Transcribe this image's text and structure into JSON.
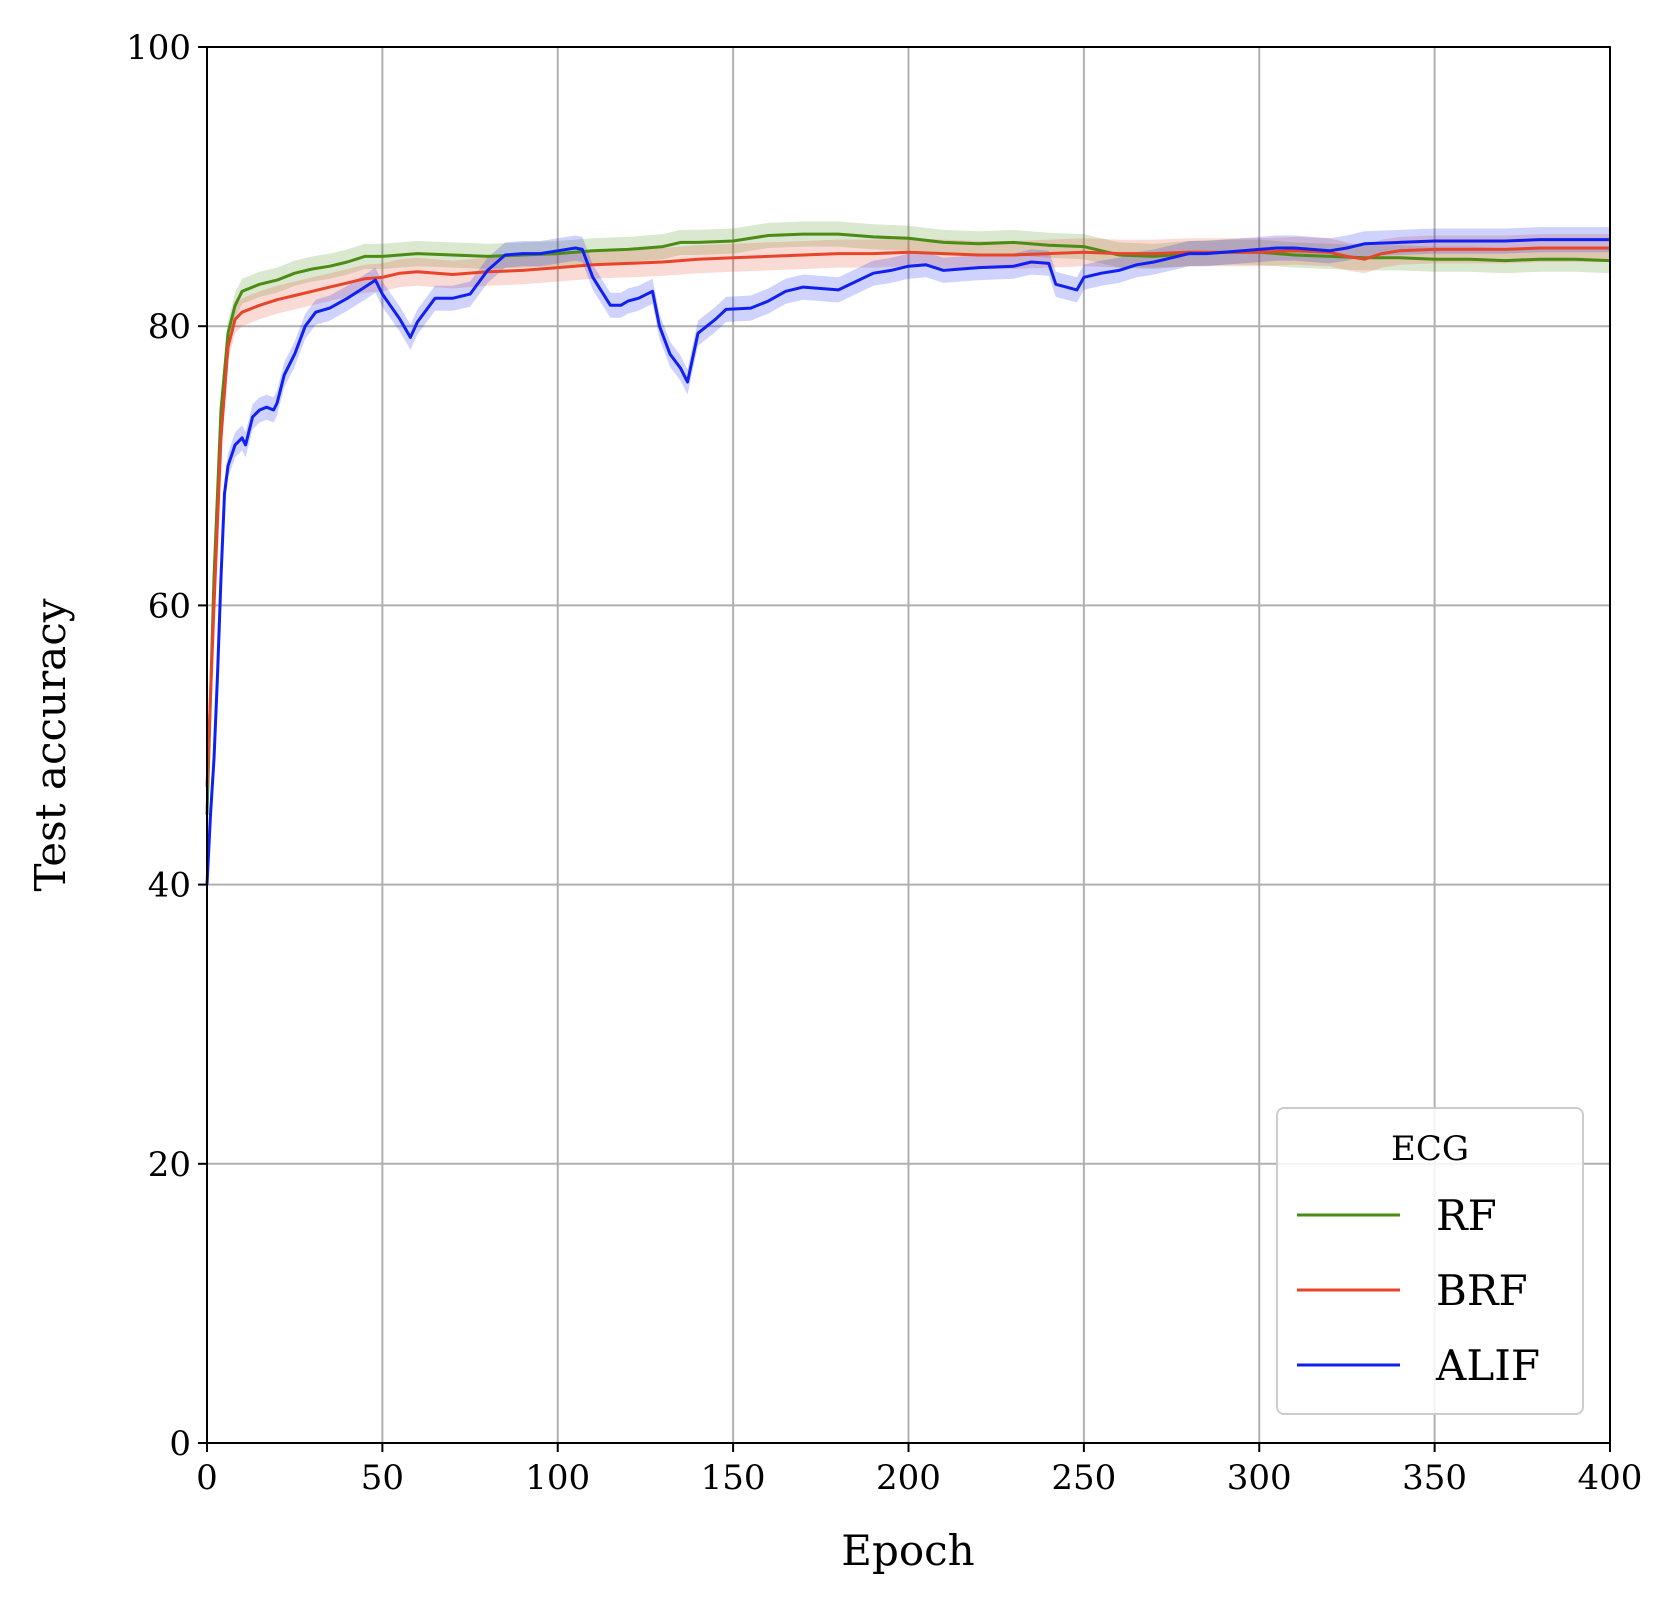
{
  "chart_data": {
    "type": "line",
    "title": "",
    "xlabel": "Epoch",
    "ylabel": "Test accuracy",
    "xlim": [
      0,
      400
    ],
    "ylim": [
      0,
      100
    ],
    "xticks": [
      0,
      50,
      100,
      150,
      200,
      250,
      300,
      350,
      400
    ],
    "xtick_labels": [
      "0",
      "50",
      "100",
      "150",
      "200",
      "250",
      "300",
      "350",
      "400"
    ],
    "yticks": [
      0,
      20,
      40,
      60,
      80,
      100
    ],
    "ytick_labels": [
      "0",
      "20",
      "40",
      "60",
      "80",
      "100"
    ],
    "grid": true,
    "legend": {
      "title": "ECG",
      "position": "lower-right"
    },
    "series": [
      {
        "name": "RF",
        "color": "#4a8c14",
        "band": 0.9,
        "points": [
          [
            0,
            45
          ],
          [
            2,
            62
          ],
          [
            4,
            74
          ],
          [
            6,
            79.5
          ],
          [
            8,
            81.5
          ],
          [
            10,
            82.5
          ],
          [
            15,
            83
          ],
          [
            20,
            83.3
          ],
          [
            25,
            83.8
          ],
          [
            30,
            84.1
          ],
          [
            35,
            84.3
          ],
          [
            40,
            84.6
          ],
          [
            45,
            85
          ],
          [
            50,
            85
          ],
          [
            60,
            85.2
          ],
          [
            70,
            85.1
          ],
          [
            80,
            85
          ],
          [
            90,
            85.1
          ],
          [
            100,
            85.2
          ],
          [
            110,
            85.4
          ],
          [
            120,
            85.5
          ],
          [
            130,
            85.7
          ],
          [
            135,
            86
          ],
          [
            140,
            86
          ],
          [
            150,
            86.1
          ],
          [
            160,
            86.5
          ],
          [
            170,
            86.6
          ],
          [
            180,
            86.6
          ],
          [
            190,
            86.4
          ],
          [
            200,
            86.3
          ],
          [
            210,
            86
          ],
          [
            220,
            85.9
          ],
          [
            230,
            86
          ],
          [
            240,
            85.8
          ],
          [
            250,
            85.7
          ],
          [
            260,
            85.1
          ],
          [
            270,
            85
          ],
          [
            280,
            85.2
          ],
          [
            290,
            85.3
          ],
          [
            300,
            85.3
          ],
          [
            310,
            85.1
          ],
          [
            320,
            85
          ],
          [
            330,
            84.9
          ],
          [
            340,
            84.9
          ],
          [
            350,
            84.8
          ],
          [
            360,
            84.8
          ],
          [
            370,
            84.7
          ],
          [
            380,
            84.8
          ],
          [
            390,
            84.8
          ],
          [
            400,
            84.7
          ]
        ]
      },
      {
        "name": "BRF",
        "color": "#e8442a",
        "band": 1.0,
        "points": [
          [
            0,
            47
          ],
          [
            2,
            60
          ],
          [
            4,
            72
          ],
          [
            6,
            78.5
          ],
          [
            8,
            80.5
          ],
          [
            10,
            81
          ],
          [
            15,
            81.5
          ],
          [
            20,
            81.9
          ],
          [
            25,
            82.2
          ],
          [
            30,
            82.5
          ],
          [
            35,
            82.8
          ],
          [
            40,
            83.1
          ],
          [
            45,
            83.4
          ],
          [
            50,
            83.5
          ],
          [
            55,
            83.8
          ],
          [
            60,
            83.9
          ],
          [
            70,
            83.7
          ],
          [
            80,
            83.9
          ],
          [
            90,
            84
          ],
          [
            100,
            84.2
          ],
          [
            110,
            84.4
          ],
          [
            120,
            84.5
          ],
          [
            130,
            84.6
          ],
          [
            140,
            84.8
          ],
          [
            150,
            84.9
          ],
          [
            160,
            85
          ],
          [
            170,
            85.1
          ],
          [
            180,
            85.2
          ],
          [
            190,
            85.2
          ],
          [
            200,
            85.3
          ],
          [
            210,
            85.2
          ],
          [
            220,
            85.1
          ],
          [
            230,
            85.1
          ],
          [
            240,
            85.2
          ],
          [
            250,
            85.3
          ],
          [
            260,
            85.2
          ],
          [
            270,
            85.2
          ],
          [
            280,
            85.3
          ],
          [
            290,
            85.3
          ],
          [
            300,
            85.3
          ],
          [
            310,
            85.4
          ],
          [
            320,
            85.3
          ],
          [
            325,
            85
          ],
          [
            330,
            84.8
          ],
          [
            335,
            85.2
          ],
          [
            340,
            85.4
          ],
          [
            350,
            85.5
          ],
          [
            360,
            85.5
          ],
          [
            370,
            85.5
          ],
          [
            380,
            85.6
          ],
          [
            390,
            85.6
          ],
          [
            400,
            85.6
          ]
        ]
      },
      {
        "name": "ALIF",
        "color": "#1020f0",
        "band": 0.9,
        "points": [
          [
            0,
            40
          ],
          [
            1,
            45
          ],
          [
            2,
            49
          ],
          [
            3,
            55
          ],
          [
            4,
            62
          ],
          [
            5,
            68
          ],
          [
            6,
            70
          ],
          [
            8,
            71.5
          ],
          [
            10,
            72
          ],
          [
            11,
            71.5
          ],
          [
            13,
            73.5
          ],
          [
            15,
            74
          ],
          [
            17,
            74.2
          ],
          [
            19,
            74
          ],
          [
            20,
            74.5
          ],
          [
            22,
            76.5
          ],
          [
            25,
            78
          ],
          [
            28,
            80
          ],
          [
            31,
            81
          ],
          [
            35,
            81.3
          ],
          [
            40,
            82
          ],
          [
            45,
            82.8
          ],
          [
            48,
            83.3
          ],
          [
            50,
            82.3
          ],
          [
            55,
            80.5
          ],
          [
            58,
            79.2
          ],
          [
            60,
            80.3
          ],
          [
            65,
            82
          ],
          [
            70,
            82
          ],
          [
            75,
            82.3
          ],
          [
            80,
            84
          ],
          [
            85,
            85.1
          ],
          [
            90,
            85.2
          ],
          [
            95,
            85.2
          ],
          [
            100,
            85.4
          ],
          [
            105,
            85.6
          ],
          [
            107,
            85.5
          ],
          [
            110,
            83.5
          ],
          [
            115,
            81.5
          ],
          [
            118,
            81.5
          ],
          [
            120,
            81.8
          ],
          [
            123,
            82
          ],
          [
            127,
            82.5
          ],
          [
            129,
            80
          ],
          [
            132,
            78
          ],
          [
            135,
            77
          ],
          [
            137,
            76
          ],
          [
            140,
            79.5
          ],
          [
            145,
            80.5
          ],
          [
            148,
            81.2
          ],
          [
            155,
            81.3
          ],
          [
            160,
            81.8
          ],
          [
            165,
            82.5
          ],
          [
            170,
            82.8
          ],
          [
            180,
            82.6
          ],
          [
            190,
            83.8
          ],
          [
            195,
            84
          ],
          [
            200,
            84.3
          ],
          [
            205,
            84.4
          ],
          [
            210,
            84
          ],
          [
            220,
            84.2
          ],
          [
            230,
            84.3
          ],
          [
            235,
            84.6
          ],
          [
            240,
            84.5
          ],
          [
            242,
            83
          ],
          [
            245,
            82.8
          ],
          [
            248,
            82.6
          ],
          [
            250,
            83.5
          ],
          [
            255,
            83.8
          ],
          [
            260,
            84
          ],
          [
            265,
            84.4
          ],
          [
            270,
            84.6
          ],
          [
            275,
            84.9
          ],
          [
            280,
            85.2
          ],
          [
            285,
            85.2
          ],
          [
            290,
            85.3
          ],
          [
            300,
            85.5
          ],
          [
            305,
            85.6
          ],
          [
            310,
            85.6
          ],
          [
            315,
            85.5
          ],
          [
            320,
            85.4
          ],
          [
            325,
            85.6
          ],
          [
            330,
            85.9
          ],
          [
            340,
            86
          ],
          [
            350,
            86.1
          ],
          [
            360,
            86.1
          ],
          [
            370,
            86.1
          ],
          [
            380,
            86.2
          ],
          [
            390,
            86.2
          ],
          [
            400,
            86.2
          ]
        ]
      }
    ]
  }
}
